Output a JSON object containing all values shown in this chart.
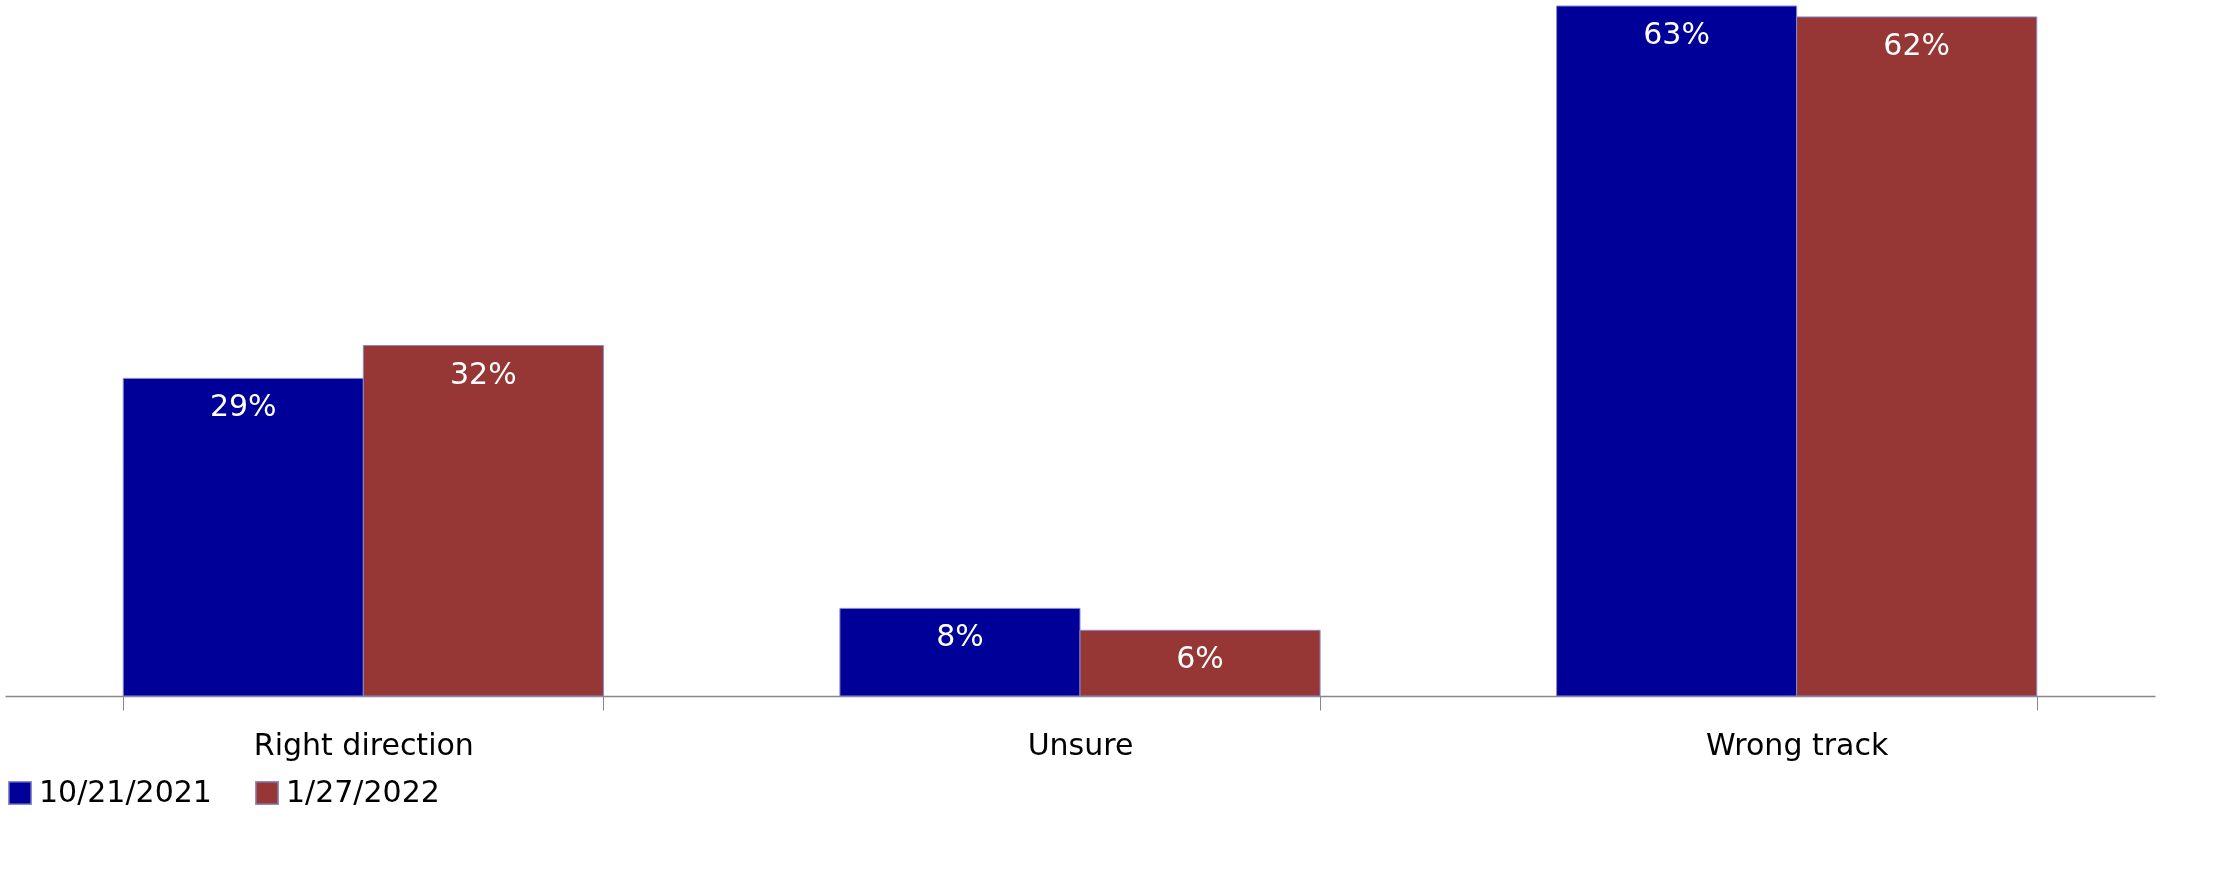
{
  "chart_data": {
    "type": "bar",
    "categories": [
      "Right direction",
      "Unsure",
      "Wrong track"
    ],
    "series": [
      {
        "name": "10/21/2021",
        "color": "#000099",
        "values": [
          29,
          8,
          63
        ],
        "value_labels": [
          "29%",
          "8%",
          "63%"
        ]
      },
      {
        "name": "1/27/2022",
        "color": "#963735",
        "values": [
          32,
          6,
          62
        ],
        "value_labels": [
          "32%",
          "6%",
          "62%"
        ]
      }
    ],
    "legend": "bottom",
    "grid": false
  }
}
